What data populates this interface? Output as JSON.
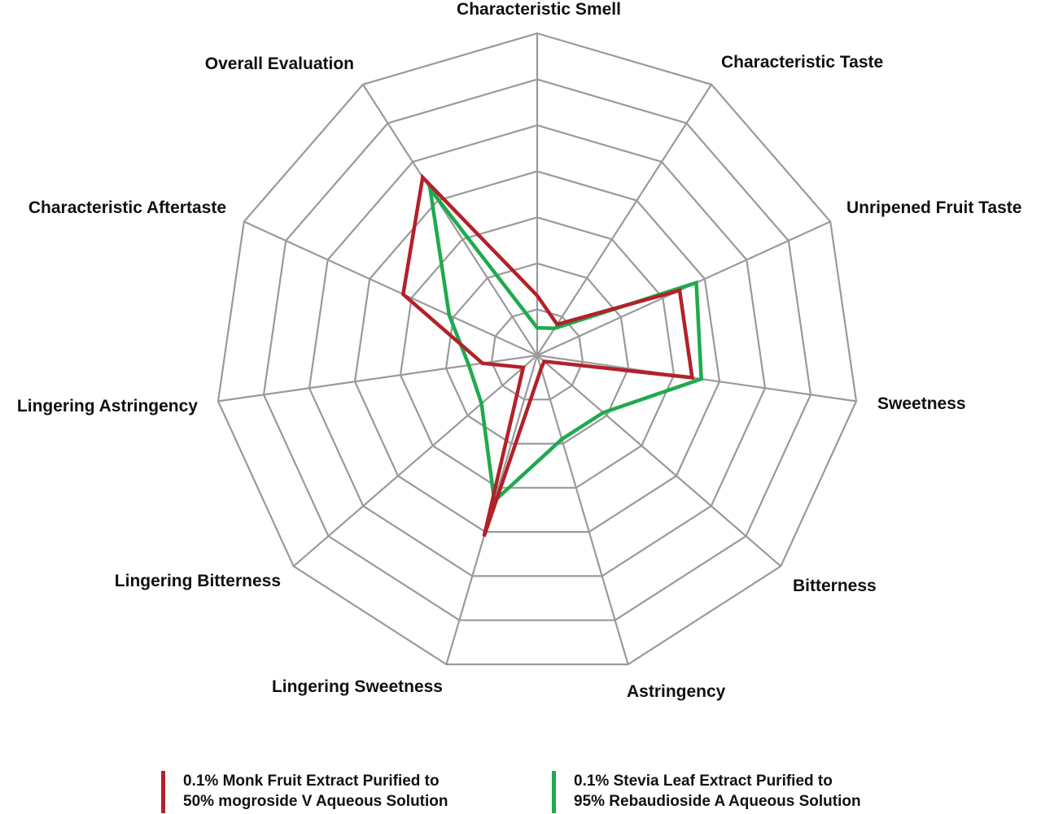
{
  "chart_data": {
    "type": "radar",
    "title": "",
    "axes": [
      "Characteristic Smell",
      "Characteristic Taste",
      "Unripened Fruit Taste",
      "Sweetness",
      "Bitterness",
      "Astringency",
      "Lingering Sweetness",
      "Lingering Bitterness",
      "Lingering Astringency",
      "Characteristic Aftertaste",
      "Overall Evaluation"
    ],
    "rmax": 7,
    "grid_rings": 7,
    "grid": true,
    "legend_position": "bottom",
    "series": [
      {
        "name_lines": [
          "0.1%  Monk Fruit Extract Purified to",
          "50% mogroside V Aqueous Solution"
        ],
        "color": "#b3212a",
        "values": [
          1.3,
          0.8,
          3.4,
          3.4,
          0.2,
          0.3,
          4.1,
          0.4,
          1.2,
          3.2,
          4.6
        ]
      },
      {
        "name_lines": [
          "0.1%  Stevia Leaf Extract Purified to",
          "95% Rebaudioside A Aqueous Solution"
        ],
        "color": "#1eaa4e",
        "values": [
          0.6,
          0.7,
          3.8,
          3.6,
          1.9,
          1.9,
          3.3,
          1.6,
          1.5,
          2.1,
          4.3
        ]
      }
    ]
  }
}
